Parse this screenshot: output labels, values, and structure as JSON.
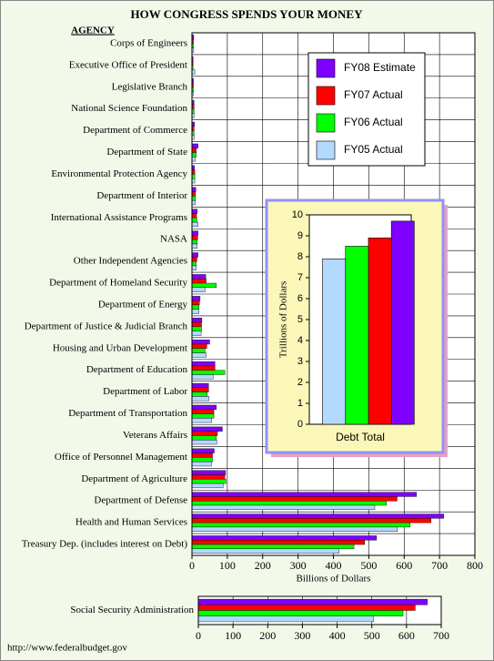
{
  "chart_data": [
    {
      "type": "hbar",
      "title": "HOW CONGRESS SPENDS YOUR MONEY",
      "header": "AGENCY",
      "xlabel": "Billions of Dollars",
      "categories": [
        "Corps of Engineers",
        "Executive Office of President",
        "Legislative Branch",
        "National Science Foundation",
        "Department of Commerce",
        "Department of State",
        "Environmental Protection Agency",
        "Department of Interior",
        "International Assistance Programs",
        "NASA",
        "Other Independent Agencies",
        "Department of Homeland Security",
        "Department of Energy",
        "Department of Justice & Judicial Branch",
        "Housing and Urban Development",
        "Department of Education",
        "Department of Labor",
        "Department of Transportation",
        "Veterans Affairs",
        "Office of Personnel Management",
        "Department of Agriculture",
        "Department of Defense",
        "Health and Human Services",
        "Treasury Dep. (includes interest on Debt)"
      ],
      "series": [
        {
          "name": "FY08 Estimate",
          "color": "#7f00ff",
          "values": [
            5,
            3,
            4,
            6,
            7,
            17,
            7,
            11,
            15,
            17,
            17,
            39,
            23,
            28,
            50,
            65,
            47,
            69,
            86,
            63,
            95,
            635,
            712,
            522
          ]
        },
        {
          "name": "FY07 Actual",
          "color": "#ff0000",
          "values": [
            4,
            3,
            4,
            6,
            6,
            12,
            8,
            10,
            13,
            16,
            14,
            40,
            21,
            27,
            42,
            65,
            47,
            62,
            72,
            58,
            93,
            580,
            676,
            488
          ]
        },
        {
          "name": "FY06 Actual",
          "color": "#00ff00",
          "values": [
            4,
            3,
            4,
            6,
            6,
            12,
            8,
            10,
            14,
            15,
            12,
            69,
            20,
            27,
            37,
            93,
            43,
            62,
            69,
            58,
            96,
            550,
            617,
            458
          ]
        },
        {
          "name": "FY05 Actual",
          "color": "#b3d9ff",
          "values": [
            5,
            8,
            4,
            6,
            6,
            10,
            8,
            10,
            17,
            15,
            12,
            37,
            20,
            26,
            40,
            60,
            48,
            56,
            70,
            55,
            88,
            517,
            581,
            416
          ]
        }
      ],
      "xlim": [
        0,
        800
      ],
      "xticks": [
        0,
        100,
        200,
        300,
        400,
        500,
        600,
        700,
        800
      ],
      "grid": true
    },
    {
      "type": "bar",
      "ylabel": "Trillions of Dollars",
      "categories": [
        "Debt Total"
      ],
      "series": [
        {
          "name": "FY08 Estimate",
          "color": "#7f00ff",
          "values": [
            9.7
          ]
        },
        {
          "name": "FY07 Actual",
          "color": "#ff0000",
          "values": [
            8.9
          ]
        },
        {
          "name": "FY06 Actual",
          "color": "#00ff00",
          "values": [
            8.5
          ]
        },
        {
          "name": "FY05 Actual",
          "color": "#b3d9ff",
          "values": [
            7.9
          ]
        }
      ],
      "ylim": [
        0,
        10
      ],
      "yticks": [
        0,
        1,
        2,
        3,
        4,
        5,
        6,
        7,
        8,
        9,
        10
      ],
      "grid": false
    },
    {
      "type": "hbar",
      "categories": [
        "Social Security Administration"
      ],
      "series": [
        {
          "name": "FY08 Estimate",
          "color": "#7f00ff",
          "values": [
            660
          ]
        },
        {
          "name": "FY07 Actual",
          "color": "#ff0000",
          "values": [
            625
          ]
        },
        {
          "name": "FY06 Actual",
          "color": "#00ff00",
          "values": [
            590
          ]
        },
        {
          "name": "FY05 Actual",
          "color": "#b3d9ff",
          "values": [
            505
          ]
        }
      ],
      "xlim": [
        0,
        700
      ],
      "xticks": [
        0,
        100,
        200,
        300,
        400,
        500,
        600,
        700
      ],
      "grid": true
    }
  ],
  "footer": "http://www.federalbudget.gov"
}
